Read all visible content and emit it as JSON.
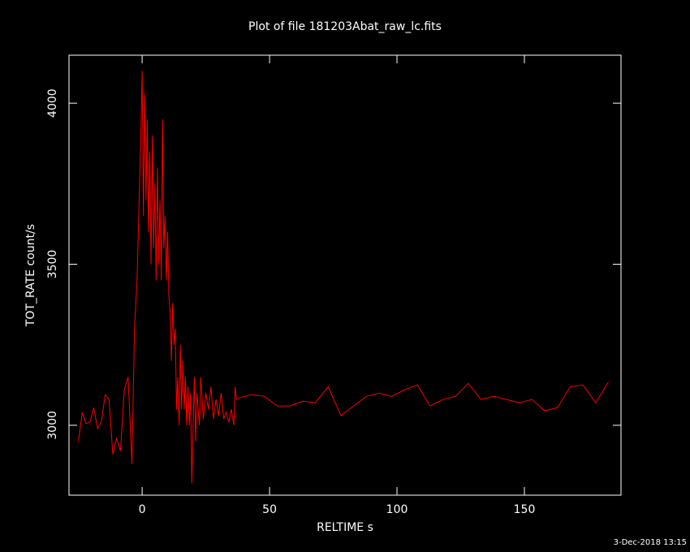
{
  "chart_data": {
    "type": "line",
    "title": "Plot of file 181203Abat_raw_lc.fits",
    "x_label": "RELTIME  s",
    "y_label": "TOT_RATE  count/s",
    "footer": "3-Dec-2018 13:15",
    "xlim": [
      -28.7,
      187.9
    ],
    "ylim": [
      2783,
      4149
    ],
    "xticks": [
      0,
      50,
      100,
      150
    ],
    "yticks": [
      3000,
      3500,
      4000
    ],
    "series": [
      {
        "name": "TOT_RATE",
        "color": "#ff0000",
        "x": [
          -25,
          -23.5,
          -22,
          -20.5,
          -19,
          -17.5,
          -16,
          -14.5,
          -13,
          -11.5,
          -10,
          -8.5,
          -7,
          -5.5,
          -4,
          -3,
          -2,
          -1.5,
          -1,
          -0.5,
          0,
          0.5,
          1,
          1.5,
          2,
          2.5,
          3,
          3.5,
          4,
          4.5,
          5,
          5.5,
          6,
          6.5,
          7,
          7.5,
          8,
          8.5,
          9,
          9.5,
          10,
          10.5,
          11,
          11.5,
          12,
          12.5,
          13,
          13.5,
          14,
          14.5,
          15,
          15.5,
          16,
          16.5,
          17,
          17.5,
          18,
          18.5,
          19,
          19.5,
          20,
          20.5,
          21,
          21.5,
          22,
          22.5,
          23,
          24,
          25,
          26,
          27,
          28,
          29,
          30,
          31,
          32,
          33,
          34,
          35,
          36,
          36.5,
          37,
          38,
          43,
          48,
          53,
          58,
          63,
          68,
          73,
          78,
          83,
          88,
          93,
          98,
          103,
          108,
          113,
          118,
          123,
          128,
          133,
          138,
          143,
          148,
          153,
          158,
          163,
          168,
          173,
          178,
          183
        ],
        "values": [
          2950,
          3040,
          3005,
          3010,
          3055,
          2990,
          3010,
          3095,
          3080,
          2910,
          2960,
          2920,
          3110,
          3150,
          2880,
          3300,
          3450,
          3600,
          3750,
          3900,
          4100,
          3650,
          4030,
          3700,
          3950,
          3600,
          3850,
          3500,
          3900,
          3550,
          3750,
          3450,
          3800,
          3500,
          3700,
          3450,
          3950,
          3550,
          3650,
          3450,
          3600,
          3400,
          3350,
          3200,
          3380,
          3250,
          3300,
          3050,
          3150,
          3000,
          3250,
          3050,
          3200,
          3050,
          3150,
          3000,
          3120,
          3000,
          3100,
          2820,
          3000,
          3150,
          2950,
          3100,
          3050,
          3000,
          3150,
          3020,
          3100,
          3050,
          3120,
          3020,
          3080,
          3030,
          3100,
          3020,
          3040,
          3010,
          3050,
          3000,
          3120,
          3080,
          3085,
          3095,
          3090,
          3060,
          3060,
          3075,
          3070,
          3120,
          3030,
          3060,
          3090,
          3100,
          3090,
          3110,
          3125,
          3060,
          3080,
          3090,
          3130,
          3080,
          3090,
          3080,
          3070,
          3080,
          3045,
          3055,
          3120,
          3125,
          3070,
          3135
        ]
      }
    ]
  }
}
